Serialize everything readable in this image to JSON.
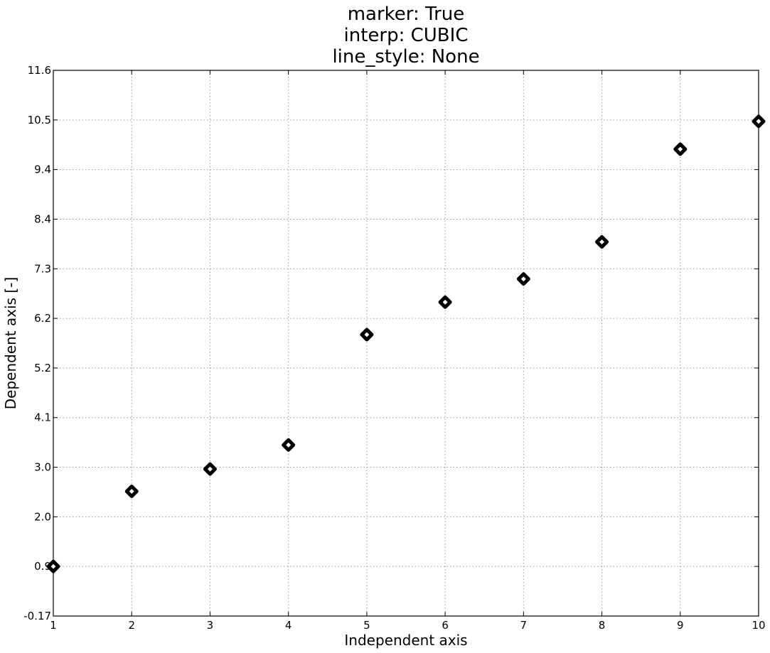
{
  "chart_data": {
    "type": "scatter",
    "title_lines": [
      "marker: True",
      "interp: CUBIC",
      "line_style: None"
    ],
    "xlabel": "Independent axis",
    "ylabel": "Dependent axis [-]",
    "x_ticks": [
      "1",
      "2",
      "3",
      "4",
      "5",
      "6",
      "7",
      "8",
      "9",
      "10"
    ],
    "y_ticks": [
      "-0.17",
      "0.9",
      "2.0",
      "3.0",
      "4.1",
      "5.2",
      "6.2",
      "7.3",
      "8.4",
      "9.4",
      "10.5",
      "11.6"
    ],
    "xlim": [
      1,
      10
    ],
    "ylim": [
      -0.17,
      11.6
    ],
    "grid": true,
    "marker": "diamond",
    "marker_color": "#000000",
    "series": [
      {
        "x": [
          1,
          2,
          3,
          4,
          5,
          6,
          7,
          8,
          9,
          10
        ],
        "y": [
          0.9,
          2.52,
          3.0,
          3.52,
          5.9,
          6.6,
          7.1,
          7.9,
          9.9,
          10.5
        ]
      }
    ]
  }
}
